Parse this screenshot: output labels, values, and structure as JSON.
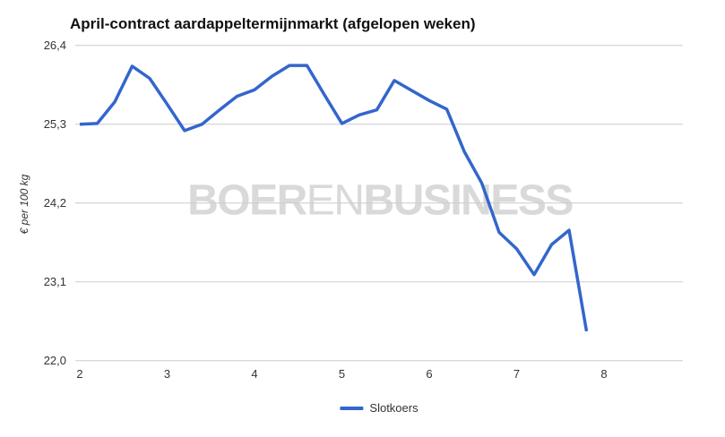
{
  "title": "April-contract aardappeltermijnmarkt (afgelopen weken)",
  "y_axis_title": "€ per 100 kg",
  "watermark": {
    "bold_left": "BOER",
    "light_mid": "EN",
    "bold_right": "BUSINESS"
  },
  "legend": {
    "items": [
      {
        "label": "Slotkoers",
        "color": "#3366cc"
      }
    ]
  },
  "colors": {
    "line": "#3366cc",
    "gridline": "#cccccc",
    "tick_text": "#333333",
    "title_text": "#111111",
    "watermark_text": "#d9d9d9",
    "background": "#ffffff"
  },
  "chart_data": {
    "type": "line",
    "title": "April-contract aardappeltermijnmarkt (afgelopen weken)",
    "xlabel": "",
    "ylabel": "€ per 100 kg",
    "grid": "horizontal",
    "legend_position": "bottom-center",
    "xlim": [
      2,
      8.9
    ],
    "ylim": [
      22.0,
      26.4
    ],
    "xticks": {
      "values": [
        2,
        3,
        4,
        5,
        6,
        7,
        8
      ],
      "labels": [
        "2",
        "3",
        "4",
        "5",
        "6",
        "7",
        "8"
      ]
    },
    "yticks": {
      "values": [
        26.4,
        25.3,
        24.2,
        23.1,
        22.0
      ],
      "labels": [
        "26,4",
        "25,3",
        "24,2",
        "23,1",
        "22,0"
      ]
    },
    "x": [
      2.0,
      2.2,
      2.4,
      2.6,
      2.8,
      3.0,
      3.2,
      3.4,
      3.6,
      3.8,
      4.0,
      4.2,
      4.4,
      4.6,
      4.8,
      5.0,
      5.2,
      5.4,
      5.6,
      5.8,
      6.0,
      6.2,
      6.4,
      6.6,
      6.8,
      7.0,
      7.2,
      7.4,
      7.6,
      7.8
    ],
    "series": [
      {
        "name": "Slotkoers",
        "color": "#3366cc",
        "values": [
          25.3,
          25.31,
          25.61,
          26.11,
          25.94,
          25.58,
          25.21,
          25.3,
          25.5,
          25.69,
          25.78,
          25.97,
          26.12,
          26.12,
          25.71,
          25.31,
          25.43,
          25.5,
          25.91,
          25.77,
          25.63,
          25.51,
          24.92,
          24.48,
          23.79,
          23.56,
          23.2,
          23.62,
          23.82,
          22.41
        ]
      }
    ]
  }
}
